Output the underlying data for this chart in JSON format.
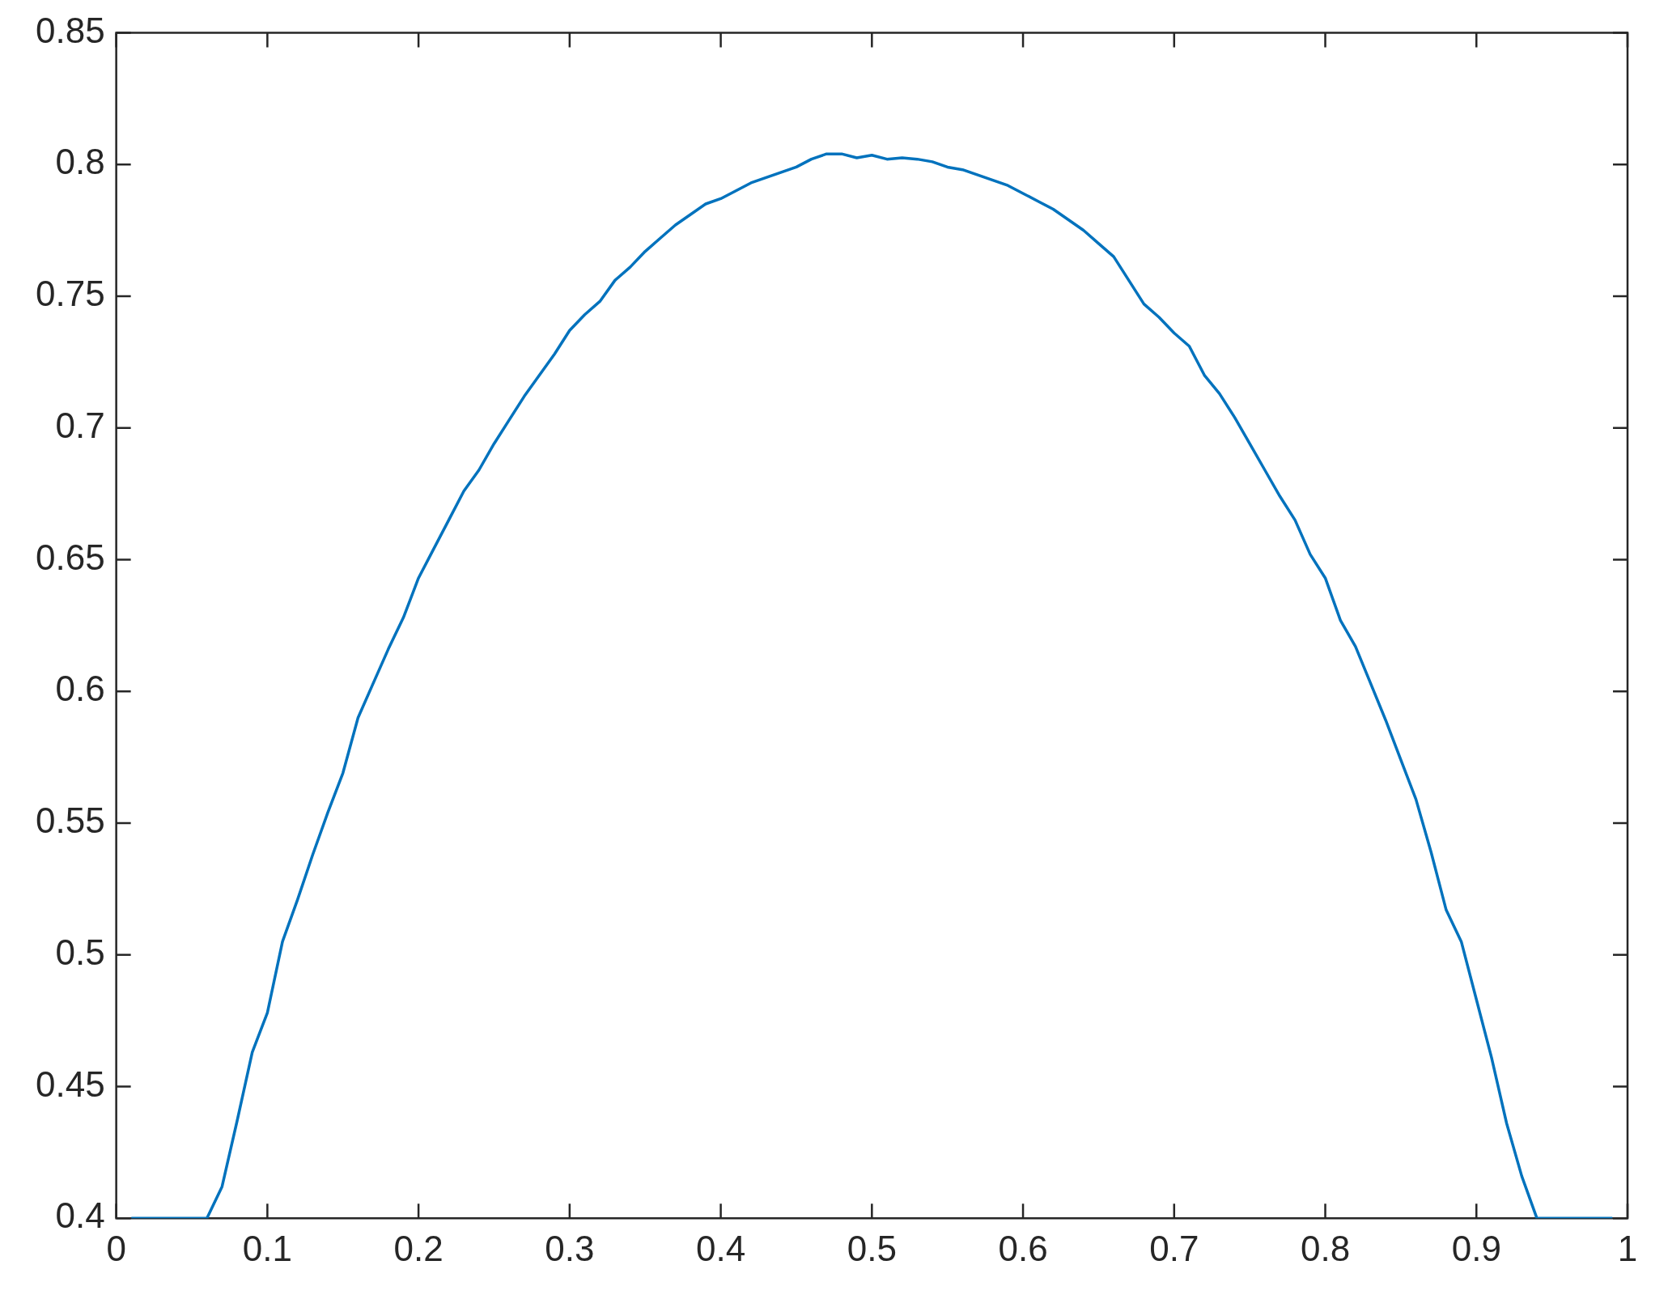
{
  "chart_data": {
    "type": "line",
    "color": "#0072bd",
    "marker": "none",
    "line_style": "solid",
    "grid": false,
    "legend": false,
    "x": [
      0.01,
      0.02,
      0.03,
      0.04,
      0.05,
      0.06,
      0.07,
      0.08,
      0.09,
      0.1,
      0.11,
      0.12,
      0.13,
      0.14,
      0.15,
      0.16,
      0.17,
      0.18,
      0.19,
      0.2,
      0.21,
      0.22,
      0.23,
      0.24,
      0.25,
      0.26,
      0.27,
      0.28,
      0.29,
      0.3,
      0.31,
      0.32,
      0.33,
      0.34,
      0.35,
      0.36,
      0.37,
      0.38,
      0.39,
      0.4,
      0.41,
      0.42,
      0.43,
      0.44,
      0.45,
      0.46,
      0.47,
      0.48,
      0.49,
      0.5,
      0.51,
      0.52,
      0.53,
      0.54,
      0.55,
      0.56,
      0.57,
      0.58,
      0.59,
      0.6,
      0.61,
      0.62,
      0.63,
      0.64,
      0.65,
      0.66,
      0.67,
      0.68,
      0.69,
      0.7,
      0.71,
      0.72,
      0.73,
      0.74,
      0.75,
      0.76,
      0.77,
      0.78,
      0.79,
      0.8,
      0.81,
      0.82,
      0.83,
      0.84,
      0.85,
      0.86,
      0.87,
      0.88,
      0.89,
      0.9,
      0.91,
      0.92,
      0.93,
      0.94,
      0.95,
      0.96,
      0.97,
      0.98,
      0.99
    ],
    "values": [
      0.4,
      0.4,
      0.4,
      0.4,
      0.4,
      0.4,
      0.412,
      0.437,
      0.463,
      0.478,
      0.505,
      0.521,
      0.538,
      0.554,
      0.569,
      0.59,
      0.603,
      0.616,
      0.628,
      0.643,
      0.654,
      0.665,
      0.676,
      0.684,
      0.694,
      0.703,
      0.712,
      0.72,
      0.728,
      0.737,
      0.743,
      0.748,
      0.756,
      0.761,
      0.767,
      0.772,
      0.777,
      0.781,
      0.785,
      0.787,
      0.79,
      0.793,
      0.795,
      0.797,
      0.799,
      0.802,
      0.804,
      0.804,
      0.8025,
      0.8035,
      0.802,
      0.8025,
      0.802,
      0.801,
      0.799,
      0.798,
      0.796,
      0.794,
      0.792,
      0.789,
      0.786,
      0.783,
      0.779,
      0.775,
      0.77,
      0.765,
      0.756,
      0.747,
      0.742,
      0.736,
      0.731,
      0.72,
      0.713,
      0.704,
      0.694,
      0.684,
      0.674,
      0.665,
      0.652,
      0.643,
      0.627,
      0.617,
      0.603,
      0.589,
      0.574,
      0.559,
      0.539,
      0.517,
      0.505,
      0.483,
      0.461,
      0.436,
      0.416,
      0.4,
      0.4,
      0.4,
      0.4,
      0.4,
      0.4
    ],
    "xlim": [
      0,
      1
    ],
    "xticks": [
      0,
      0.1,
      0.2,
      0.3,
      0.4,
      0.5,
      0.6,
      0.7,
      0.8,
      0.9,
      1
    ],
    "ylim": [
      0.4,
      0.85
    ],
    "yticks": [
      0.4,
      0.45,
      0.5,
      0.55,
      0.6,
      0.65,
      0.7,
      0.75,
      0.8,
      0.85
    ]
  }
}
